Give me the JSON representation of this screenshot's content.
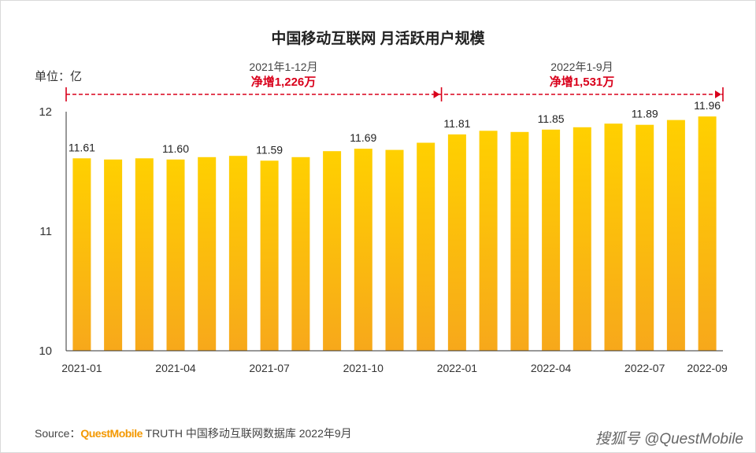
{
  "title": "中国移动互联网 月活跃用户规模",
  "unit_label": "单位：亿",
  "periods": [
    {
      "label": "2021年1-12月",
      "net": "净增1,226万"
    },
    {
      "label": "2022年1-9月",
      "net": "净增1,531万"
    }
  ],
  "source": {
    "prefix": "Source：",
    "brand": "QuestMobile",
    "rest": " TRUTH 中国移动互联网数据库 2022年9月"
  },
  "watermark": "搜狐号 @QuestMobile",
  "colors": {
    "bar_top": "#ffd000",
    "bar_bottom": "#f7a81b",
    "arrow": "#d9001b"
  },
  "chart_data": {
    "type": "bar",
    "categories": [
      "2021-01",
      "2021-02",
      "2021-03",
      "2021-04",
      "2021-05",
      "2021-06",
      "2021-07",
      "2021-08",
      "2021-09",
      "2021-10",
      "2021-11",
      "2021-12",
      "2022-01",
      "2022-02",
      "2022-03",
      "2022-04",
      "2022-05",
      "2022-06",
      "2022-07",
      "2022-08",
      "2022-09"
    ],
    "values": [
      11.61,
      11.6,
      11.61,
      11.6,
      11.62,
      11.63,
      11.59,
      11.62,
      11.67,
      11.69,
      11.68,
      11.74,
      11.81,
      11.84,
      11.83,
      11.85,
      11.87,
      11.9,
      11.89,
      11.93,
      11.96
    ],
    "data_labels": [
      "11.61",
      "",
      "",
      "11.60",
      "",
      "",
      "11.59",
      "",
      "",
      "11.69",
      "",
      "",
      "11.81",
      "",
      "",
      "11.85",
      "",
      "",
      "11.89",
      "",
      "11.96"
    ],
    "x_tick_labels": [
      "2021-01",
      "",
      "",
      "2021-04",
      "",
      "",
      "2021-07",
      "",
      "",
      "2021-10",
      "",
      "",
      "2022-01",
      "",
      "",
      "2022-04",
      "",
      "",
      "2022-07",
      "",
      "2022-09"
    ],
    "y_ticks": [
      "10",
      "11",
      "12"
    ],
    "ylim": [
      10,
      12
    ],
    "grid": false
  }
}
